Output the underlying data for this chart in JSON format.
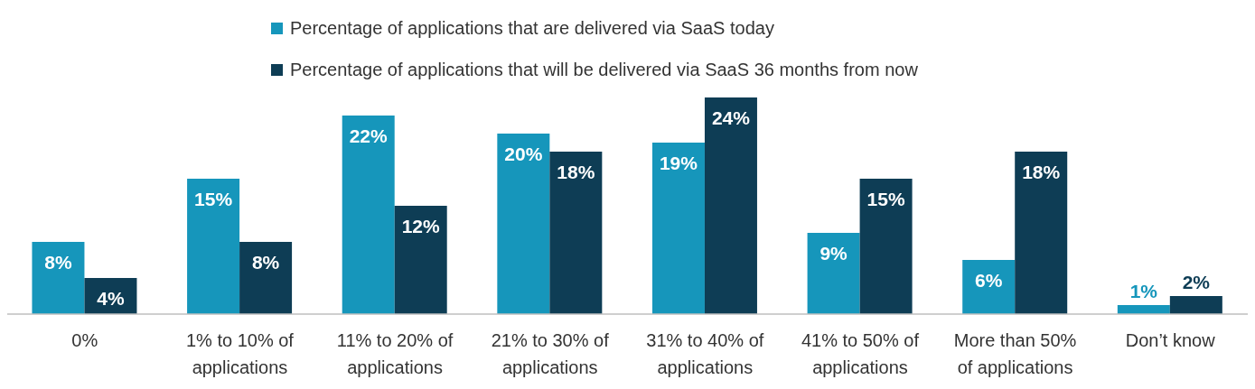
{
  "chart_data": {
    "type": "bar",
    "categories": [
      "0%",
      "1% to 10% of applications",
      "11% to 20% of applications",
      "21% to 30% of applications",
      "31% to 40% of applications",
      "41% to 50% of applications",
      "More than 50% of applications",
      "Don’t know"
    ],
    "series": [
      {
        "name": "Percentage of applications that are delivered via SaaS today",
        "color": "#1696bb",
        "values": [
          8,
          15,
          22,
          20,
          19,
          9,
          6,
          1
        ],
        "value_labels": [
          "8%",
          "15%",
          "22%",
          "20%",
          "19%",
          "9%",
          "6%",
          "1%"
        ]
      },
      {
        "name": "Percentage of applications that will be delivered via SaaS 36 months from now",
        "color": "#0e3d55",
        "values": [
          4,
          8,
          12,
          18,
          24,
          15,
          18,
          2
        ],
        "value_labels": [
          "4%",
          "8%",
          "12%",
          "18%",
          "24%",
          "15%",
          "18%",
          "2%"
        ]
      }
    ],
    "legend": "top",
    "grid": false
  }
}
